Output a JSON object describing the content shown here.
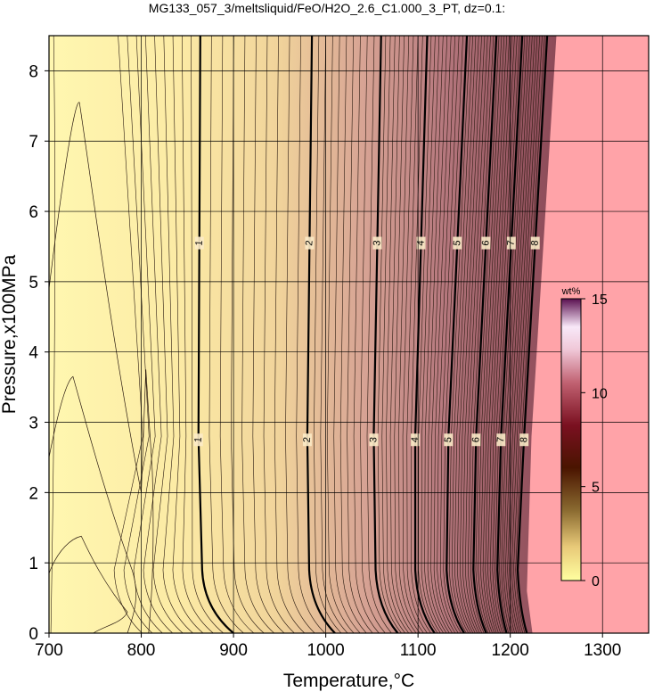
{
  "chart_data": {
    "type": "contour",
    "title": "MG133_057_3/meltsliquid/FeO/H2O_2.6_C1.000_3_PT, dz=0.1:",
    "xlabel": "Temperature,°C",
    "ylabel": "Pressure,x100MPa",
    "xlim": [
      700,
      1350
    ],
    "ylim": [
      0,
      8.5
    ],
    "xticks": [
      "700",
      "800",
      "900",
      "1000",
      "1100",
      "1200",
      "1300"
    ],
    "yticks": [
      "0",
      "1",
      "2",
      "3",
      "4",
      "5",
      "6",
      "7",
      "8"
    ],
    "grid": true,
    "colorbar": {
      "label": "wt%",
      "range": [
        0,
        15
      ],
      "ticks": [
        "0",
        "5",
        "10",
        "15"
      ],
      "position": "right"
    },
    "liquidus_region_color": "#FFA3A8",
    "major_contours": [
      {
        "label": "1",
        "top_T": 864,
        "mid_T": 862,
        "low_T": 866,
        "end_T": 900
      },
      {
        "label": "2",
        "top_T": 985,
        "mid_T": 980,
        "low_T": 982,
        "end_T": 1010
      },
      {
        "label": "3",
        "top_T": 1060,
        "mid_T": 1052,
        "low_T": 1054,
        "end_T": 1078
      },
      {
        "label": "4",
        "top_T": 1110,
        "mid_T": 1097,
        "low_T": 1097,
        "end_T": 1118
      },
      {
        "label": "5",
        "top_T": 1153,
        "mid_T": 1133,
        "low_T": 1131,
        "end_T": 1150
      },
      {
        "label": "6",
        "top_T": 1185,
        "mid_T": 1163,
        "low_T": 1160,
        "end_T": 1174
      },
      {
        "label": "7",
        "top_T": 1213,
        "mid_T": 1190,
        "low_T": 1186,
        "end_T": 1196
      },
      {
        "label": "8",
        "top_T": 1240,
        "mid_T": 1215,
        "low_T": 1208,
        "end_T": 1218
      }
    ]
  }
}
